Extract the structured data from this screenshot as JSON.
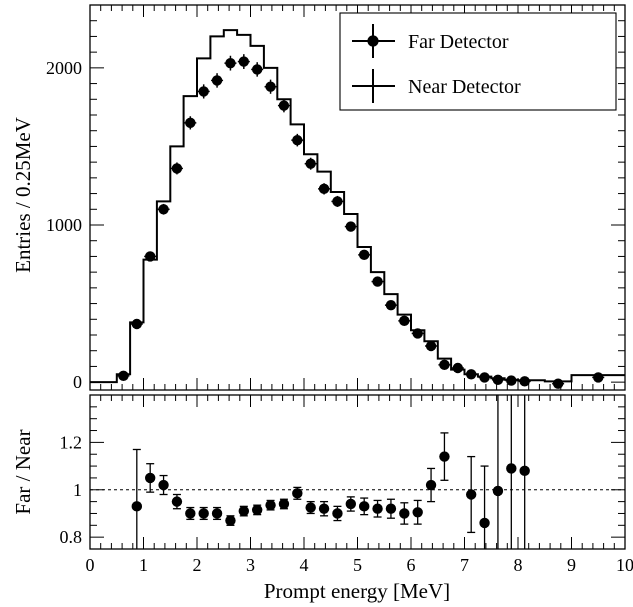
{
  "chart_data": [
    {
      "type": "histogram",
      "xlabel": "",
      "ylabel": "Entries / 0.25MeV",
      "xlim": [
        0,
        10
      ],
      "ylim": [
        -50,
        2400
      ],
      "yticks": [
        0,
        1000,
        2000
      ],
      "grid": false,
      "legend_position": "top-right",
      "series": [
        {
          "name": "Far Detector",
          "style": "points-with-error-bars",
          "x": [
            0.625,
            0.875,
            1.125,
            1.375,
            1.625,
            1.875,
            2.125,
            2.375,
            2.625,
            2.875,
            3.125,
            3.375,
            3.625,
            3.875,
            4.125,
            4.375,
            4.625,
            4.875,
            5.125,
            5.375,
            5.625,
            5.875,
            6.125,
            6.375,
            6.625,
            6.875,
            7.125,
            7.375,
            7.625,
            7.875,
            8.125,
            8.75,
            9.5
          ],
          "y": [
            40,
            370,
            800,
            1100,
            1360,
            1650,
            1850,
            1920,
            2030,
            2040,
            1990,
            1880,
            1760,
            1540,
            1390,
            1230,
            1150,
            990,
            810,
            640,
            490,
            390,
            310,
            230,
            110,
            90,
            50,
            30,
            15,
            10,
            5,
            -10,
            30
          ],
          "yerr": [
            8,
            20,
            28,
            34,
            38,
            42,
            45,
            46,
            47,
            47,
            46,
            45,
            43,
            40,
            38,
            36,
            35,
            32,
            29,
            26,
            23,
            20,
            18,
            16,
            11,
            10,
            8,
            6,
            4,
            4,
            3,
            3,
            6
          ]
        },
        {
          "name": "Near Detector",
          "style": "step-histogram",
          "bin_edges": [
            0,
            0.5,
            0.75,
            1.0,
            1.25,
            1.5,
            1.75,
            2.0,
            2.25,
            2.5,
            2.75,
            3.0,
            3.25,
            3.5,
            3.75,
            4.0,
            4.25,
            4.5,
            4.75,
            5.0,
            5.25,
            5.5,
            5.75,
            6.0,
            6.25,
            6.5,
            6.75,
            7.0,
            7.25,
            7.5,
            7.75,
            8.0,
            8.5,
            9.0,
            10.0
          ],
          "values": [
            0,
            50,
            380,
            780,
            1150,
            1500,
            1820,
            2060,
            2200,
            2240,
            2210,
            2140,
            2000,
            1800,
            1640,
            1450,
            1340,
            1210,
            1070,
            860,
            700,
            560,
            430,
            330,
            260,
            150,
            80,
            50,
            35,
            25,
            15,
            12,
            5,
            45
          ]
        }
      ]
    },
    {
      "type": "scatter",
      "xlabel": "Prompt energy [MeV]",
      "ylabel": "Far / Near",
      "xlim": [
        0,
        10
      ],
      "ylim": [
        0.75,
        1.4
      ],
      "xticks": [
        0,
        1,
        2,
        3,
        4,
        5,
        6,
        7,
        8,
        9,
        10
      ],
      "yticks": [
        0.8,
        1,
        1.2
      ],
      "reference_line": 1,
      "grid": false,
      "series": [
        {
          "name": "",
          "x": [
            0.875,
            1.125,
            1.375,
            1.625,
            1.875,
            2.125,
            2.375,
            2.625,
            2.875,
            3.125,
            3.375,
            3.625,
            3.875,
            4.125,
            4.375,
            4.625,
            4.875,
            5.125,
            5.375,
            5.625,
            5.875,
            6.125,
            6.375,
            6.625,
            7.125,
            7.375,
            7.625,
            7.875,
            8.125
          ],
          "y": [
            0.93,
            1.05,
            1.02,
            0.95,
            0.9,
            0.9,
            0.9,
            0.87,
            0.91,
            0.915,
            0.935,
            0.94,
            0.985,
            0.925,
            0.92,
            0.9,
            0.94,
            0.93,
            0.92,
            0.92,
            0.9,
            0.905,
            1.02,
            1.14,
            0.98,
            0.86,
            0.995,
            1.09,
            1.08
          ],
          "yerr": [
            0.24,
            0.06,
            0.04,
            0.03,
            0.025,
            0.025,
            0.025,
            0.02,
            0.02,
            0.02,
            0.02,
            0.02,
            0.025,
            0.025,
            0.03,
            0.03,
            0.03,
            0.035,
            0.035,
            0.04,
            0.045,
            0.05,
            0.07,
            0.1,
            0.16,
            0.24,
            0.6,
            0.6,
            0.6
          ]
        }
      ]
    }
  ]
}
